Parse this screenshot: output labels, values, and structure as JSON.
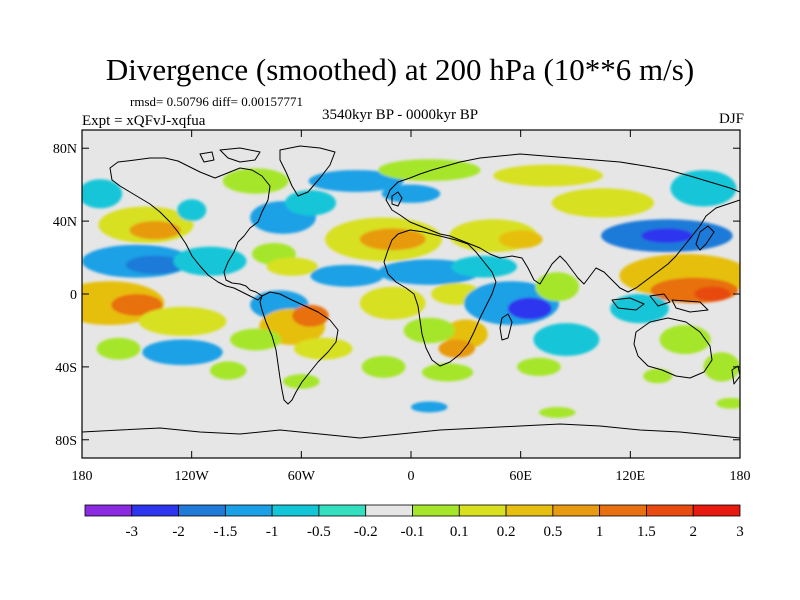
{
  "title": "Divergence (smoothed) at 200 hPa (10**6 m/s)",
  "stats_line": "rmsd= 0.50796 diff= 0.00157771",
  "period": "3540kyr BP - 0000kyr BP",
  "experiment": "Expt = xQFvJ-xqfua",
  "season": "DJF",
  "map": {
    "projection": "cylindrical equidistant",
    "lon_range": [
      -180,
      180
    ],
    "lat_range": [
      -90,
      90
    ],
    "lat_ticks": [
      {
        "value": 80,
        "label": "80N"
      },
      {
        "value": 40,
        "label": "40N"
      },
      {
        "value": 0,
        "label": "0"
      },
      {
        "value": -40,
        "label": "40S"
      },
      {
        "value": -80,
        "label": "80S"
      }
    ],
    "lon_ticks": [
      {
        "value": -180,
        "label": "180"
      },
      {
        "value": -120,
        "label": "120W"
      },
      {
        "value": -60,
        "label": "60W"
      },
      {
        "value": 0,
        "label": "0"
      },
      {
        "value": 60,
        "label": "60E"
      },
      {
        "value": 120,
        "label": "120E"
      },
      {
        "value": 180,
        "label": "180"
      }
    ],
    "neutral_color": "#e6e6e6",
    "blobs": [
      {
        "lon": -170,
        "lat": 55,
        "rx": 12,
        "ry": 8,
        "level": 4
      },
      {
        "lon": -145,
        "lat": 38,
        "rx": 26,
        "ry": 10,
        "level": 8
      },
      {
        "lon": -140,
        "lat": 35,
        "rx": 14,
        "ry": 5,
        "level": 10
      },
      {
        "lon": -120,
        "lat": 46,
        "rx": 8,
        "ry": 6,
        "level": 4
      },
      {
        "lon": -150,
        "lat": 18,
        "rx": 30,
        "ry": 9,
        "level": 3
      },
      {
        "lon": -140,
        "lat": 16,
        "rx": 16,
        "ry": 5,
        "level": 2
      },
      {
        "lon": -165,
        "lat": -5,
        "rx": 30,
        "ry": 12,
        "level": 9
      },
      {
        "lon": -150,
        "lat": -6,
        "rx": 14,
        "ry": 6,
        "level": 11
      },
      {
        "lon": -125,
        "lat": -15,
        "rx": 24,
        "ry": 8,
        "level": 8
      },
      {
        "lon": -110,
        "lat": 18,
        "rx": 20,
        "ry": 8,
        "level": 4
      },
      {
        "lon": -125,
        "lat": -32,
        "rx": 22,
        "ry": 7,
        "level": 3
      },
      {
        "lon": -160,
        "lat": -30,
        "rx": 12,
        "ry": 6,
        "level": 7
      },
      {
        "lon": -85,
        "lat": 62,
        "rx": 18,
        "ry": 7,
        "level": 7
      },
      {
        "lon": -70,
        "lat": 42,
        "rx": 18,
        "ry": 9,
        "level": 3
      },
      {
        "lon": -55,
        "lat": 50,
        "rx": 14,
        "ry": 7,
        "level": 4
      },
      {
        "lon": -75,
        "lat": 22,
        "rx": 12,
        "ry": 6,
        "level": 7
      },
      {
        "lon": -65,
        "lat": 15,
        "rx": 14,
        "ry": 5,
        "level": 8
      },
      {
        "lon": -72,
        "lat": -6,
        "rx": 16,
        "ry": 8,
        "level": 3
      },
      {
        "lon": -65,
        "lat": -18,
        "rx": 18,
        "ry": 10,
        "level": 9
      },
      {
        "lon": -55,
        "lat": -12,
        "rx": 10,
        "ry": 6,
        "level": 11
      },
      {
        "lon": -85,
        "lat": -25,
        "rx": 14,
        "ry": 6,
        "level": 7
      },
      {
        "lon": -48,
        "lat": -30,
        "rx": 16,
        "ry": 6,
        "level": 8
      },
      {
        "lon": -100,
        "lat": -42,
        "rx": 10,
        "ry": 5,
        "level": 7
      },
      {
        "lon": -60,
        "lat": -48,
        "rx": 10,
        "ry": 4,
        "level": 7
      },
      {
        "lon": -30,
        "lat": 62,
        "rx": 26,
        "ry": 6,
        "level": 3
      },
      {
        "lon": 10,
        "lat": 68,
        "rx": 28,
        "ry": 6,
        "level": 7
      },
      {
        "lon": 75,
        "lat": 65,
        "rx": 30,
        "ry": 6,
        "level": 8
      },
      {
        "lon": 0,
        "lat": 55,
        "rx": 16,
        "ry": 5,
        "level": 3
      },
      {
        "lon": -15,
        "lat": 30,
        "rx": 32,
        "ry": 12,
        "level": 8
      },
      {
        "lon": -10,
        "lat": 30,
        "rx": 18,
        "ry": 6,
        "level": 10
      },
      {
        "lon": 45,
        "lat": 32,
        "rx": 24,
        "ry": 9,
        "level": 8
      },
      {
        "lon": 60,
        "lat": 30,
        "rx": 12,
        "ry": 5,
        "level": 9
      },
      {
        "lon": -35,
        "lat": 10,
        "rx": 20,
        "ry": 6,
        "level": 3
      },
      {
        "lon": 10,
        "lat": 12,
        "rx": 28,
        "ry": 7,
        "level": 3
      },
      {
        "lon": 40,
        "lat": 15,
        "rx": 18,
        "ry": 6,
        "level": 4
      },
      {
        "lon": -10,
        "lat": -5,
        "rx": 18,
        "ry": 9,
        "level": 8
      },
      {
        "lon": 25,
        "lat": 0,
        "rx": 14,
        "ry": 6,
        "level": 8
      },
      {
        "lon": 55,
        "lat": -5,
        "rx": 26,
        "ry": 12,
        "level": 3
      },
      {
        "lon": 65,
        "lat": -8,
        "rx": 12,
        "ry": 6,
        "level": 1
      },
      {
        "lon": 80,
        "lat": 4,
        "rx": 12,
        "ry": 8,
        "level": 7
      },
      {
        "lon": 30,
        "lat": -22,
        "rx": 12,
        "ry": 8,
        "level": 9
      },
      {
        "lon": 25,
        "lat": -30,
        "rx": 10,
        "ry": 5,
        "level": 10
      },
      {
        "lon": 10,
        "lat": -20,
        "rx": 14,
        "ry": 7,
        "level": 7
      },
      {
        "lon": 85,
        "lat": -25,
        "rx": 18,
        "ry": 9,
        "level": 4
      },
      {
        "lon": 70,
        "lat": -40,
        "rx": 12,
        "ry": 5,
        "level": 7
      },
      {
        "lon": 20,
        "lat": -43,
        "rx": 14,
        "ry": 5,
        "level": 7
      },
      {
        "lon": -15,
        "lat": -40,
        "rx": 12,
        "ry": 6,
        "level": 7
      },
      {
        "lon": 105,
        "lat": 50,
        "rx": 28,
        "ry": 8,
        "level": 8
      },
      {
        "lon": 140,
        "lat": 32,
        "rx": 36,
        "ry": 9,
        "level": 2
      },
      {
        "lon": 140,
        "lat": 32,
        "rx": 14,
        "ry": 4,
        "level": 1
      },
      {
        "lon": 160,
        "lat": 58,
        "rx": 18,
        "ry": 10,
        "level": 4
      },
      {
        "lon": 150,
        "lat": 10,
        "rx": 36,
        "ry": 12,
        "level": 9
      },
      {
        "lon": 155,
        "lat": 2,
        "rx": 24,
        "ry": 7,
        "level": 11
      },
      {
        "lon": 165,
        "lat": 0,
        "rx": 10,
        "ry": 4,
        "level": 12
      },
      {
        "lon": 125,
        "lat": -8,
        "rx": 16,
        "ry": 8,
        "level": 4
      },
      {
        "lon": 150,
        "lat": -25,
        "rx": 14,
        "ry": 8,
        "level": 7
      },
      {
        "lon": 170,
        "lat": -40,
        "rx": 10,
        "ry": 8,
        "level": 7
      },
      {
        "lon": 135,
        "lat": -45,
        "rx": 8,
        "ry": 4,
        "level": 7
      },
      {
        "lon": 10,
        "lat": -62,
        "rx": 10,
        "ry": 3,
        "level": 3
      },
      {
        "lon": 80,
        "lat": -65,
        "rx": 10,
        "ry": 3,
        "level": 7
      },
      {
        "lon": 175,
        "lat": -60,
        "rx": 8,
        "ry": 3,
        "level": 7
      }
    ]
  },
  "colorbar": {
    "colors": [
      "#8a2be2",
      "#2e35ee",
      "#1f7ad8",
      "#1aa0e6",
      "#12c6d8",
      "#32e0c0",
      "#e6e6e6",
      "#a6e62a",
      "#d8e020",
      "#e6bf10",
      "#e89a10",
      "#e87010",
      "#e84a10",
      "#e81a10"
    ],
    "labels": [
      "-3",
      "-2",
      "-1.5",
      "-1",
      "-0.5",
      "-0.2",
      "-0.1",
      "0.1",
      "0.2",
      "0.5",
      "1",
      "1.5",
      "2",
      "3"
    ]
  }
}
